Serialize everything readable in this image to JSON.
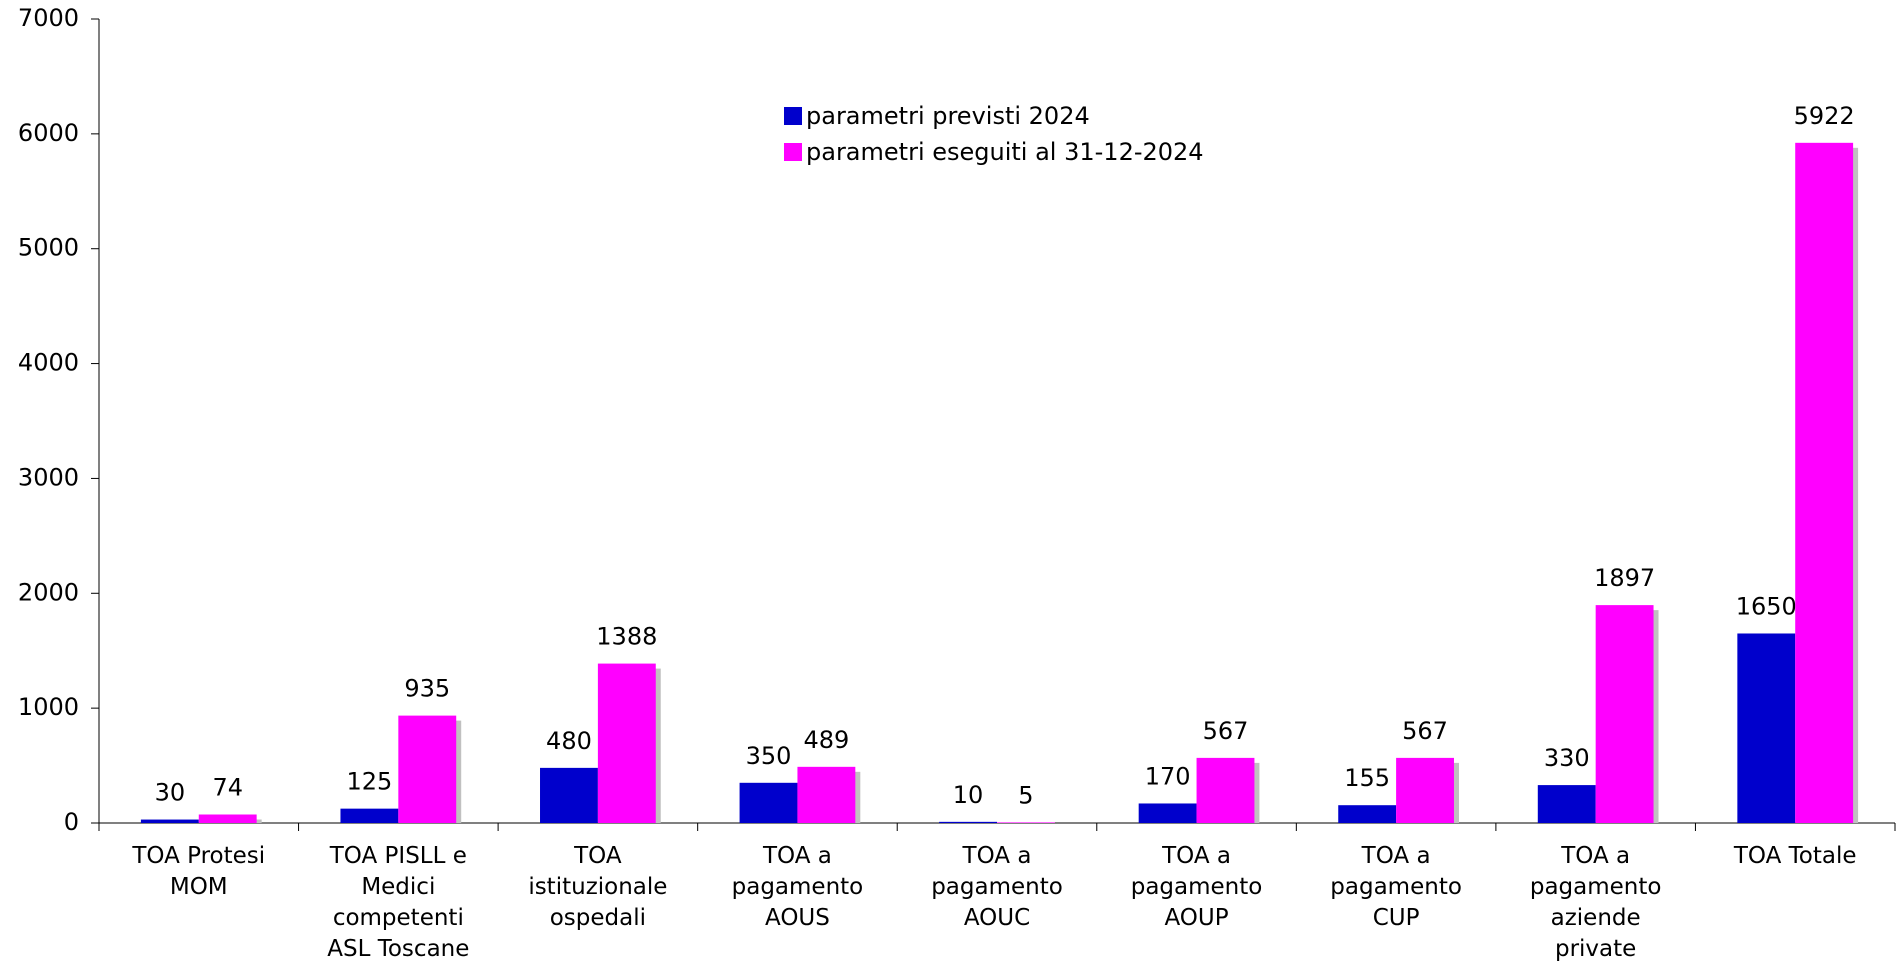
{
  "chart_data": {
    "type": "bar",
    "categories": [
      "TOA Protesi MOM",
      "TOA PISLL e Medici competenti ASL Toscane",
      "TOA istituzionale ospedali",
      "TOA a pagamento AOUS",
      "TOA a pagamento AOUC",
      "TOA a pagamento AOUP",
      "TOA a pagamento CUP",
      "TOA a pagamento aziende private",
      "TOA Totale"
    ],
    "series": [
      {
        "name": "parametri previsti 2024",
        "color": "#0000cc",
        "values": [
          30,
          125,
          480,
          350,
          10,
          170,
          155,
          330,
          1650
        ]
      },
      {
        "name": "parametri eseguiti al 31-12-2024",
        "color": "#ff00ff",
        "values": [
          74,
          935,
          1388,
          489,
          5,
          567,
          567,
          1897,
          5922
        ]
      }
    ],
    "ylim": [
      0,
      7000
    ],
    "yticks": [
      0,
      1000,
      2000,
      3000,
      4000,
      5000,
      6000,
      7000
    ],
    "grid": false,
    "legend": "top"
  }
}
